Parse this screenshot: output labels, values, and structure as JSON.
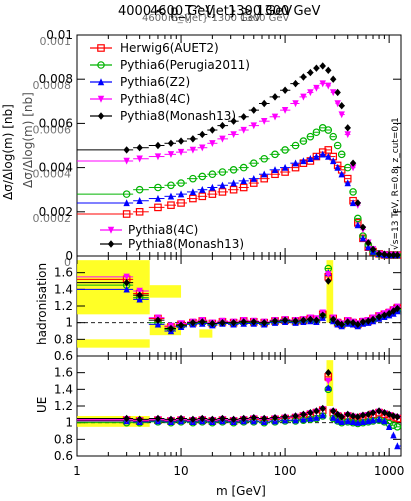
{
  "header": {
    "title_lines": [
      "4000 < p_T^{jet} > 1300 GeV",
      "4600 GeV",
      "1300 GeV"
    ],
    "title_ghost_lines": [
      "4600 GeV",
      "m_{jet} 1300 GeV",
      "1300 GeV"
    ]
  },
  "side_note": "√s=13 TeV, R=0.8, z_cut=0.1",
  "y_axis_labels": [
    "Δσ/Δlog(m) [nb]",
    "Δσ/Δlog(m) [nb]"
  ],
  "x_axis_label": "m [GeV]",
  "legend": {
    "entries": [
      "Herwig6(AUET2)",
      "Pythia6(Perugia2011)",
      "Pythia6(Z2)",
      "Pythia8(4C)",
      "Pythia8(Monash13)"
    ],
    "lower_entries": [
      "Pythia8(4C)",
      "Pythia8(Monash13)"
    ]
  },
  "chart_data": {
    "type": "scatter",
    "x": [
      3,
      4,
      6,
      8,
      10,
      13,
      16,
      20,
      25,
      32,
      40,
      50,
      63,
      80,
      100,
      126,
      150,
      175,
      200,
      230,
      260,
      290,
      320,
      350,
      400,
      450,
      500,
      560,
      630,
      700,
      800,
      900,
      1000,
      1100,
      1200
    ],
    "x_scale": "log",
    "xlim": [
      1,
      1300
    ],
    "x_ticks": [
      "1",
      "10",
      "100",
      "1000"
    ],
    "colors": {
      "Herwig6(AUET2)": "#ff0000",
      "Pythia6(Perugia2011)": "#00b300",
      "Pythia6(Z2)": "#0000ff",
      "Pythia8(4C)": "#ff00ff",
      "Pythia8(Monash13)": "#000000",
      "band": "#ffff00"
    },
    "panels": [
      {
        "name": "main",
        "ylabel": "Δσ/Δlog(m) [nb]",
        "ylim": [
          0,
          0.01
        ],
        "y_ticks": [
          "0",
          "0.002",
          "0.004",
          "0.006",
          "0.008",
          "0.01"
        ],
        "y_ticks_overlay": [
          "0",
          "0.0002",
          "0.0004",
          "0.0006",
          "0.0008",
          "0.001"
        ],
        "y_tick_values": [
          0,
          0.002,
          0.004,
          0.006,
          0.008,
          0.01
        ],
        "series": [
          {
            "name": "Herwig6(AUET2)",
            "values": [
              0.0019,
              0.002,
              0.0022,
              0.0023,
              0.0024,
              0.0026,
              0.0027,
              0.0028,
              0.0029,
              0.003,
              0.0031,
              0.0033,
              0.0035,
              0.0037,
              0.0038,
              0.004,
              0.0042,
              0.0043,
              0.0045,
              0.0047,
              0.0048,
              0.0045,
              0.0041,
              0.0039,
              0.0035,
              0.0025,
              0.0015,
              0.0008,
              0.0004,
              0.0002,
              0.0001,
              5e-05,
              3e-05,
              2e-05,
              1e-05
            ]
          },
          {
            "name": "Pythia6(Perugia2011)",
            "values": [
              0.0028,
              0.003,
              0.0031,
              0.0032,
              0.0033,
              0.0035,
              0.0036,
              0.0037,
              0.0038,
              0.0039,
              0.004,
              0.0042,
              0.0044,
              0.0046,
              0.0048,
              0.005,
              0.0052,
              0.0054,
              0.0056,
              0.0058,
              0.0057,
              0.0054,
              0.005,
              0.0046,
              0.004,
              0.0029,
              0.0017,
              0.0009,
              0.0005,
              0.0002,
              0.0001,
              6e-05,
              3e-05,
              2e-05,
              1e-05
            ]
          },
          {
            "name": "Pythia6(Z2)",
            "values": [
              0.0024,
              0.0025,
              0.0026,
              0.0027,
              0.0028,
              0.0029,
              0.003,
              0.0031,
              0.0032,
              0.0033,
              0.0034,
              0.0035,
              0.0037,
              0.0039,
              0.004,
              0.0042,
              0.0043,
              0.0044,
              0.0045,
              0.0046,
              0.0045,
              0.0043,
              0.004,
              0.0037,
              0.0033,
              0.0024,
              0.0014,
              0.0008,
              0.0004,
              0.0002,
              0.0001,
              5e-05,
              3e-05,
              2e-05,
              1e-05
            ]
          },
          {
            "name": "Pythia8(4C)",
            "values": [
              0.0043,
              0.0044,
              0.0045,
              0.0046,
              0.0047,
              0.0048,
              0.0049,
              0.0051,
              0.0053,
              0.0055,
              0.0057,
              0.0059,
              0.0061,
              0.0063,
              0.0066,
              0.0069,
              0.0072,
              0.0074,
              0.0076,
              0.0078,
              0.0077,
              0.0074,
              0.0069,
              0.0064,
              0.0055,
              0.004,
              0.0023,
              0.0012,
              0.0006,
              0.0003,
              0.0001,
              7e-05,
              4e-05,
              2e-05,
              1e-05
            ]
          },
          {
            "name": "Pythia8(Monash13)",
            "values": [
              0.0048,
              0.0049,
              0.005,
              0.0051,
              0.0052,
              0.0053,
              0.0055,
              0.0057,
              0.0059,
              0.0061,
              0.0063,
              0.0066,
              0.0069,
              0.0072,
              0.0075,
              0.0078,
              0.0081,
              0.0083,
              0.0085,
              0.0086,
              0.0084,
              0.008,
              0.0074,
              0.0068,
              0.0058,
              0.0042,
              0.0024,
              0.0013,
              0.0006,
              0.0003,
              0.0001,
              8e-05,
              4e-05,
              2e-05,
              1e-05
            ]
          }
        ]
      },
      {
        "name": "hadronisation",
        "ylabel": "hadronisation",
        "ylim": [
          0.6,
          1.8
        ],
        "y_ticks": [
          "0.6",
          "0.8",
          "1",
          "1.2",
          "1.4",
          "1.6"
        ],
        "y_tick_values": [
          0.6,
          0.8,
          1.0,
          1.2,
          1.4,
          1.6
        ],
        "series": [
          {
            "name": "Herwig6(AUET2)",
            "values": [
              1.52,
              1.35,
              1.05,
              0.95,
              0.98,
              1.0,
              1.02,
              0.99,
              1.01,
              1.0,
              1.02,
              1.01,
              1.0,
              1.02,
              1.03,
              1.02,
              1.03,
              1.05,
              1.04,
              1.1,
              1.55,
              1.05,
              1.0,
              0.98,
              1.02,
              1.0,
              0.98,
              1.01,
              1.02,
              1.05,
              1.08,
              1.1,
              1.12,
              1.15,
              1.18
            ]
          },
          {
            "name": "Pythia6(Perugia2011)",
            "values": [
              1.45,
              1.3,
              1.0,
              0.92,
              0.96,
              0.99,
              1.0,
              0.98,
              1.0,
              0.99,
              1.0,
              1.0,
              0.99,
              1.01,
              1.02,
              1.01,
              1.02,
              1.03,
              1.02,
              1.08,
              1.65,
              1.03,
              0.99,
              0.97,
              1.0,
              0.99,
              0.97,
              1.0,
              1.01,
              1.03,
              1.06,
              1.08,
              1.1,
              1.13,
              1.15
            ]
          },
          {
            "name": "Pythia6(Z2)",
            "values": [
              1.4,
              1.28,
              0.98,
              0.9,
              0.95,
              0.98,
              0.99,
              0.97,
              0.99,
              0.98,
              0.99,
              0.99,
              0.98,
              1.0,
              1.01,
              1.0,
              1.01,
              1.02,
              1.01,
              1.06,
              1.6,
              1.02,
              0.98,
              0.96,
              0.99,
              0.98,
              0.96,
              0.99,
              1.0,
              1.02,
              1.05,
              1.07,
              1.09,
              1.11,
              1.14
            ]
          },
          {
            "name": "Pythia8(4C)",
            "values": [
              1.55,
              1.38,
              1.06,
              0.96,
              0.99,
              1.01,
              1.03,
              1.0,
              1.02,
              1.01,
              1.03,
              1.02,
              1.01,
              1.03,
              1.04,
              1.03,
              1.04,
              1.06,
              1.05,
              1.12,
              1.58,
              1.06,
              1.01,
              0.99,
              1.03,
              1.01,
              0.99,
              1.02,
              1.03,
              1.06,
              1.09,
              1.11,
              1.13,
              1.16,
              1.19
            ]
          },
          {
            "name": "Pythia8(Monash13)",
            "values": [
              1.48,
              1.33,
              1.03,
              0.93,
              0.97,
              1.0,
              1.01,
              0.99,
              1.0,
              1.0,
              1.01,
              1.01,
              1.0,
              1.02,
              1.03,
              1.02,
              1.03,
              1.04,
              1.03,
              1.09,
              1.5,
              1.04,
              1.0,
              0.98,
              1.01,
              1.0,
              0.98,
              1.01,
              1.02,
              1.04,
              1.07,
              1.09,
              1.11,
              1.14,
              1.17
            ]
          }
        ]
      },
      {
        "name": "UE",
        "ylabel": "UE",
        "ylim": [
          0.6,
          1.8
        ],
        "y_ticks": [
          "0.6",
          "0.8",
          "1",
          "1.2",
          "1.4",
          "1.6"
        ],
        "y_tick_values": [
          0.6,
          0.8,
          1.0,
          1.2,
          1.4,
          1.6
        ],
        "series": [
          {
            "name": "Herwig6(AUET2)",
            "values": [
              1.03,
              1.02,
              1.03,
              1.02,
              1.03,
              1.02,
              1.03,
              1.02,
              1.03,
              1.02,
              1.03,
              1.04,
              1.03,
              1.04,
              1.05,
              1.06,
              1.08,
              1.1,
              1.12,
              1.15,
              1.55,
              1.12,
              1.08,
              1.05,
              1.08,
              1.06,
              1.05,
              1.07,
              1.08,
              1.1,
              1.12,
              1.1,
              1.08,
              1.06,
              1.05
            ]
          },
          {
            "name": "Pythia6(Perugia2011)",
            "values": [
              1.0,
              1.0,
              1.01,
              1.0,
              1.01,
              1.0,
              1.01,
              1.0,
              1.01,
              1.0,
              1.01,
              1.01,
              1.0,
              1.01,
              1.02,
              1.02,
              1.03,
              1.04,
              1.05,
              1.08,
              1.4,
              1.05,
              1.02,
              1.0,
              1.01,
              1.0,
              0.99,
              1.0,
              1.01,
              1.02,
              1.03,
              1.01,
              0.99,
              0.97,
              0.95
            ]
          },
          {
            "name": "Pythia6(Z2)",
            "values": [
              1.02,
              1.01,
              1.02,
              1.01,
              1.02,
              1.01,
              1.02,
              1.01,
              1.02,
              1.01,
              1.02,
              1.02,
              1.01,
              1.02,
              1.03,
              1.03,
              1.04,
              1.05,
              1.06,
              1.09,
              1.42,
              1.06,
              1.03,
              1.01,
              1.02,
              1.01,
              1.0,
              1.01,
              1.02,
              1.03,
              1.04,
              1.02,
              0.95,
              0.85,
              0.72
            ]
          },
          {
            "name": "Pythia8(4C)",
            "values": [
              1.04,
              1.03,
              1.04,
              1.03,
              1.04,
              1.03,
              1.04,
              1.03,
              1.04,
              1.03,
              1.04,
              1.05,
              1.04,
              1.05,
              1.06,
              1.07,
              1.09,
              1.11,
              1.13,
              1.16,
              1.5,
              1.13,
              1.09,
              1.06,
              1.09,
              1.07,
              1.06,
              1.08,
              1.09,
              1.11,
              1.13,
              1.11,
              1.09,
              1.07,
              1.06
            ]
          },
          {
            "name": "Pythia8(Monash13)",
            "values": [
              1.05,
              1.04,
              1.05,
              1.04,
              1.05,
              1.04,
              1.05,
              1.04,
              1.05,
              1.04,
              1.05,
              1.06,
              1.05,
              1.06,
              1.07,
              1.08,
              1.1,
              1.12,
              1.14,
              1.17,
              1.6,
              1.14,
              1.1,
              1.07,
              1.1,
              1.08,
              1.07,
              1.09,
              1.1,
              1.12,
              1.14,
              1.12,
              1.1,
              1.08,
              1.07
            ]
          }
        ]
      }
    ],
    "bands": [
      {
        "panel": "hadronisation",
        "x_range": [
          1,
          5
        ],
        "y_range": [
          1.1,
          1.75
        ]
      },
      {
        "panel": "hadronisation",
        "x_range": [
          5,
          10
        ],
        "y_range": [
          1.3,
          1.45
        ]
      },
      {
        "panel": "hadronisation",
        "x_range": [
          5,
          10
        ],
        "y_range": [
          0.85,
          0.98
        ]
      },
      {
        "panel": "hadronisation",
        "x_range": [
          15,
          20
        ],
        "y_range": [
          0.82,
          0.92
        ]
      },
      {
        "panel": "hadronisation",
        "x_range": [
          250,
          290
        ],
        "y_range": [
          1.0,
          1.75
        ]
      },
      {
        "panel": "hadronisation",
        "x_range": [
          1,
          5
        ],
        "y_range": [
          0.7,
          0.8
        ]
      },
      {
        "panel": "UE",
        "x_range": [
          250,
          290
        ],
        "y_range": [
          1.2,
          1.75
        ]
      },
      {
        "panel": "UE",
        "x_range": [
          1,
          5
        ],
        "y_range": [
          0.95,
          1.08
        ]
      }
    ]
  }
}
